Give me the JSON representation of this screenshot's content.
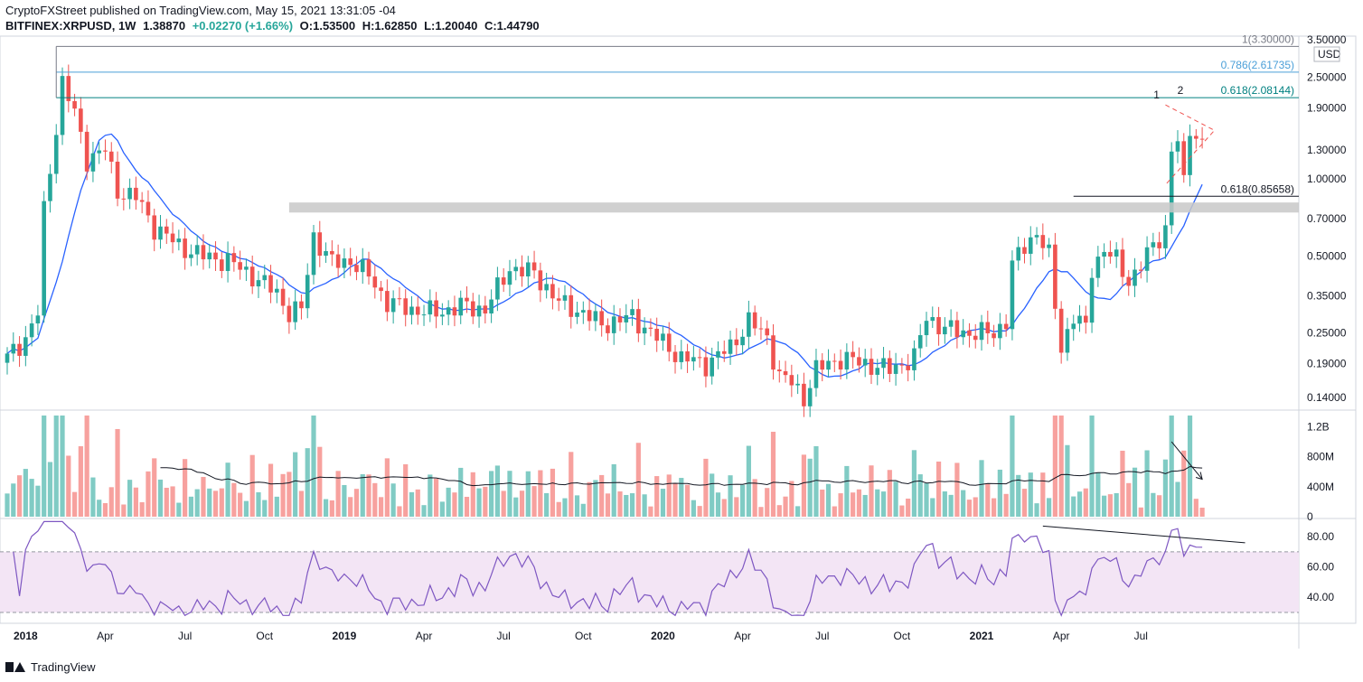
{
  "header": {
    "line1": "CryptoFXStreet published on TradingView.com, May 15, 2021 13:31:05 -04",
    "symbol": "BITFINEX:XRPUSD, 1W",
    "last": "1.38870",
    "change": "+0.02270 (+1.66%)",
    "open": "O:1.53500",
    "high": "H:1.62850",
    "low": "L:1.20040",
    "close": "C:1.44790"
  },
  "footer": {
    "brand": "TradingView"
  },
  "colors": {
    "up": "#26a69a",
    "down": "#ef5350",
    "vol_up": "#80cbc4",
    "vol_down": "#f7a19e",
    "sma": "#2962ff",
    "rsi": "#7e57c2",
    "rsi_band": "#f3e5f5",
    "fib": "#008080",
    "fib786": "#4a9fd8"
  },
  "chart_data": {
    "type": "candlestick",
    "timeframe": "1W",
    "price_scale": "log",
    "currency": "USD",
    "price_ticks": [
      "3.50000",
      "2.50000",
      "1.90000",
      "1.30000",
      "1.00000",
      "0.70000",
      "0.50000",
      "0.35000",
      "0.25000",
      "0.19000",
      "0.14000"
    ],
    "x_ticks": [
      "2018",
      "Apr",
      "Jul",
      "Oct",
      "2019",
      "Apr",
      "Jul",
      "Oct",
      "2020",
      "Apr",
      "Jul",
      "Oct",
      "2021",
      "Apr",
      "Jul"
    ],
    "fib_levels": [
      {
        "label": "1(3.30000)",
        "value": 3.3
      },
      {
        "label": "0.786(2.61735)",
        "value": 2.61735
      },
      {
        "label": "0.618(2.08144)",
        "value": 2.08144
      },
      {
        "label": "0.618(0.85658)",
        "value": 0.85658
      }
    ],
    "resistance_zone": [
      0.74,
      0.81
    ],
    "wave_labels": [
      "1",
      "2"
    ],
    "candles_summary": {
      "start": "2017-12-11",
      "end": "2021-05-10",
      "close_anchors": [
        [
          0,
          0.2
        ],
        [
          3,
          0.24
        ],
        [
          5,
          0.3
        ],
        [
          6,
          0.75
        ],
        [
          8,
          1.6
        ],
        [
          9,
          2.4
        ],
        [
          11,
          1.8
        ],
        [
          13,
          1.2
        ],
        [
          16,
          1.3
        ],
        [
          18,
          0.9
        ],
        [
          21,
          0.85
        ],
        [
          24,
          0.65
        ],
        [
          28,
          0.55
        ],
        [
          32,
          0.5
        ],
        [
          36,
          0.48
        ],
        [
          40,
          0.42
        ],
        [
          44,
          0.36
        ],
        [
          46,
          0.3
        ],
        [
          48,
          0.31
        ],
        [
          50,
          0.6
        ],
        [
          53,
          0.47
        ],
        [
          56,
          0.48
        ],
        [
          59,
          0.42
        ],
        [
          62,
          0.33
        ],
        [
          66,
          0.31
        ],
        [
          70,
          0.3
        ],
        [
          74,
          0.32
        ],
        [
          78,
          0.31
        ],
        [
          82,
          0.45
        ],
        [
          86,
          0.43
        ],
        [
          90,
          0.33
        ],
        [
          94,
          0.3
        ],
        [
          97,
          0.27
        ],
        [
          102,
          0.29
        ],
        [
          106,
          0.24
        ],
        [
          110,
          0.2
        ],
        [
          114,
          0.19
        ],
        [
          118,
          0.22
        ],
        [
          121,
          0.28
        ],
        [
          124,
          0.24
        ],
        [
          126,
          0.17
        ],
        [
          128,
          0.16
        ],
        [
          130,
          0.14
        ],
        [
          132,
          0.18
        ],
        [
          136,
          0.2
        ],
        [
          140,
          0.19
        ],
        [
          144,
          0.18
        ],
        [
          148,
          0.2
        ],
        [
          150,
          0.29
        ],
        [
          153,
          0.26
        ],
        [
          157,
          0.25
        ],
        [
          161,
          0.25
        ],
        [
          163,
          0.28
        ],
        [
          164,
          0.46
        ],
        [
          166,
          0.55
        ],
        [
          168,
          0.62
        ],
        [
          170,
          0.5
        ],
        [
          171,
          0.32
        ],
        [
          172,
          0.22
        ],
        [
          174,
          0.29
        ],
        [
          176,
          0.26
        ],
        [
          177,
          0.45
        ],
        [
          179,
          0.53
        ],
        [
          181,
          0.48
        ],
        [
          183,
          0.4
        ],
        [
          185,
          0.46
        ],
        [
          187,
          0.55
        ],
        [
          189,
          0.64
        ],
        [
          190,
          1.3
        ],
        [
          191,
          1.4
        ],
        [
          192,
          0.95
        ],
        [
          193,
          1.6
        ],
        [
          195,
          1.38
        ]
      ]
    },
    "volume": {
      "ticks": [
        "1.2B",
        "800M",
        "400M",
        "0"
      ]
    },
    "rsi": {
      "ticks": [
        "80.00",
        "60.00",
        "40.00"
      ],
      "upper": 70,
      "lower": 30
    }
  }
}
